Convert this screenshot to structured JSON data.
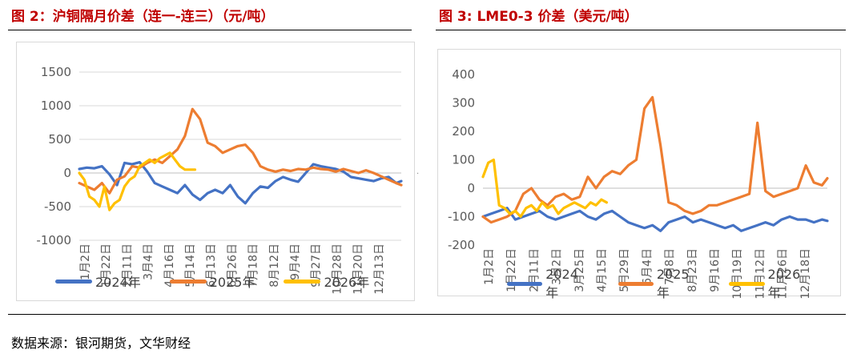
{
  "source_note": "数据来源：银河期货，文华财经",
  "chart_data": [
    {
      "type": "line",
      "title": "图 2：沪铜隔月价差（连一-连三）（元/吨）",
      "ylim": [
        -1000,
        1500
      ],
      "yticks": [
        1500,
        1000,
        500,
        0,
        -500,
        -1000
      ],
      "x_tick_labels": [
        "1月2日",
        "1月22日",
        "2月11日",
        "3月4日",
        "4月16日",
        "5月14日",
        "6月13日",
        "6月26日",
        "7月18日",
        "8月12日",
        "9月4日",
        "9月27日",
        "10月28日",
        "11月20日",
        "12月13日"
      ],
      "legend": [
        "2024年",
        "2025年",
        "2026年"
      ],
      "legend_position": "bottom",
      "grid": true,
      "series": [
        {
          "name": "2024年",
          "color": "#4472c4",
          "x": [
            0,
            6,
            12,
            18,
            24,
            30,
            36,
            42,
            48,
            54,
            60,
            66,
            72,
            78,
            84,
            90,
            96,
            102,
            108,
            114,
            120,
            126,
            132,
            138,
            144,
            150,
            156,
            162,
            168,
            174,
            180,
            186,
            192,
            198,
            204,
            210,
            216,
            222,
            228,
            234,
            240,
            246,
            252,
            256
          ],
          "y": [
            60,
            80,
            70,
            100,
            -20,
            -180,
            150,
            130,
            160,
            20,
            -150,
            -200,
            -250,
            -300,
            -180,
            -320,
            -400,
            -300,
            -250,
            -300,
            -180,
            -350,
            -450,
            -300,
            -200,
            -220,
            -120,
            -60,
            -100,
            -130,
            0,
            130,
            100,
            80,
            60,
            20,
            -60,
            -80,
            -100,
            -120,
            -80,
            -60,
            -150,
            -120
          ]
        },
        {
          "name": "2025年",
          "color": "#ed7d31",
          "x": [
            0,
            6,
            12,
            18,
            24,
            30,
            36,
            42,
            48,
            54,
            60,
            66,
            72,
            78,
            84,
            90,
            96,
            102,
            108,
            114,
            120,
            126,
            132,
            138,
            144,
            150,
            156,
            162,
            168,
            174,
            180,
            186,
            192,
            198,
            204,
            210,
            216,
            222,
            228,
            234,
            240,
            246,
            252,
            256
          ],
          "y": [
            -150,
            -200,
            -250,
            -150,
            -300,
            -100,
            -50,
            100,
            80,
            150,
            200,
            150,
            250,
            350,
            550,
            950,
            800,
            450,
            400,
            300,
            350,
            400,
            420,
            300,
            100,
            50,
            20,
            50,
            30,
            60,
            50,
            80,
            60,
            50,
            20,
            60,
            30,
            0,
            40,
            0,
            -50,
            -100,
            -150,
            -180
          ]
        },
        {
          "name": "2026年",
          "color": "#ffc000",
          "x": [
            0,
            4,
            8,
            12,
            16,
            20,
            24,
            28,
            32,
            36,
            40,
            44,
            48,
            52,
            56,
            60,
            64,
            68,
            72,
            76,
            80,
            84,
            88,
            92
          ],
          "y": [
            0,
            -100,
            -350,
            -400,
            -500,
            -200,
            -550,
            -450,
            -400,
            -200,
            -100,
            -50,
            100,
            150,
            200,
            150,
            220,
            260,
            300,
            200,
            100,
            50,
            50,
            50
          ]
        }
      ]
    },
    {
      "type": "line",
      "title": "图 3: LME0-3 价差（美元/吨）",
      "ylim": [
        -200,
        400
      ],
      "yticks": [
        400,
        300,
        200,
        100,
        0,
        -100,
        -200
      ],
      "x_tick_labels": [
        "1月2日",
        "1月22日",
        "2月11日",
        "3月2日",
        "3月25日",
        "4月15日",
        "5月29日",
        "6月4日",
        "7月8日",
        "8月23日",
        "9月16日",
        "10月19日",
        "11月12日",
        "11月26日",
        "12月18日"
      ],
      "legend": [
        "2024年",
        "2025年",
        "2026年"
      ],
      "legend_position": "bottom",
      "grid": false,
      "series": [
        {
          "name": "2024年",
          "color": "#4472c4",
          "x": [
            0,
            6,
            12,
            18,
            24,
            30,
            36,
            42,
            48,
            54,
            60,
            66,
            72,
            78,
            84,
            90,
            96,
            102,
            108,
            114,
            120,
            126,
            132,
            138,
            144,
            150,
            156,
            162,
            168,
            174,
            180,
            186,
            192,
            198,
            204,
            210,
            216,
            222,
            228,
            234,
            240,
            246,
            252,
            256
          ],
          "y": [
            -100,
            -90,
            -80,
            -70,
            -110,
            -100,
            -90,
            -80,
            -100,
            -110,
            -100,
            -90,
            -80,
            -100,
            -110,
            -90,
            -80,
            -100,
            -120,
            -130,
            -140,
            -130,
            -150,
            -120,
            -110,
            -100,
            -120,
            -110,
            -120,
            -130,
            -140,
            -130,
            -150,
            -140,
            -130,
            -120,
            -130,
            -110,
            -100,
            -110,
            -110,
            -120,
            -110,
            -115
          ]
        },
        {
          "name": "2025年",
          "color": "#ed7d31",
          "x": [
            0,
            6,
            12,
            18,
            24,
            30,
            36,
            42,
            48,
            54,
            60,
            66,
            72,
            78,
            84,
            90,
            96,
            102,
            108,
            114,
            120,
            126,
            132,
            138,
            144,
            150,
            156,
            162,
            168,
            174,
            180,
            186,
            192,
            198,
            204,
            210,
            216,
            222,
            228,
            234,
            240,
            246,
            252,
            256
          ],
          "y": [
            -100,
            -120,
            -110,
            -100,
            -80,
            -20,
            0,
            -40,
            -60,
            -30,
            -20,
            -40,
            -30,
            40,
            0,
            40,
            60,
            50,
            80,
            100,
            280,
            320,
            150,
            -50,
            -60,
            -80,
            -90,
            -80,
            -60,
            -60,
            -50,
            -40,
            -30,
            -20,
            230,
            -10,
            -30,
            -20,
            -10,
            0,
            80,
            20,
            10,
            35
          ]
        },
        {
          "name": "2026年",
          "color": "#ffc000",
          "x": [
            0,
            4,
            8,
            12,
            16,
            20,
            24,
            28,
            32,
            36,
            40,
            44,
            48,
            52,
            56,
            60,
            64,
            68,
            72,
            76,
            80,
            84,
            88,
            92
          ],
          "y": [
            40,
            90,
            100,
            -60,
            -70,
            -90,
            -80,
            -100,
            -70,
            -60,
            -80,
            -50,
            -70,
            -60,
            -90,
            -70,
            -60,
            -50,
            -60,
            -70,
            -50,
            -60,
            -40,
            -50
          ]
        }
      ]
    }
  ]
}
